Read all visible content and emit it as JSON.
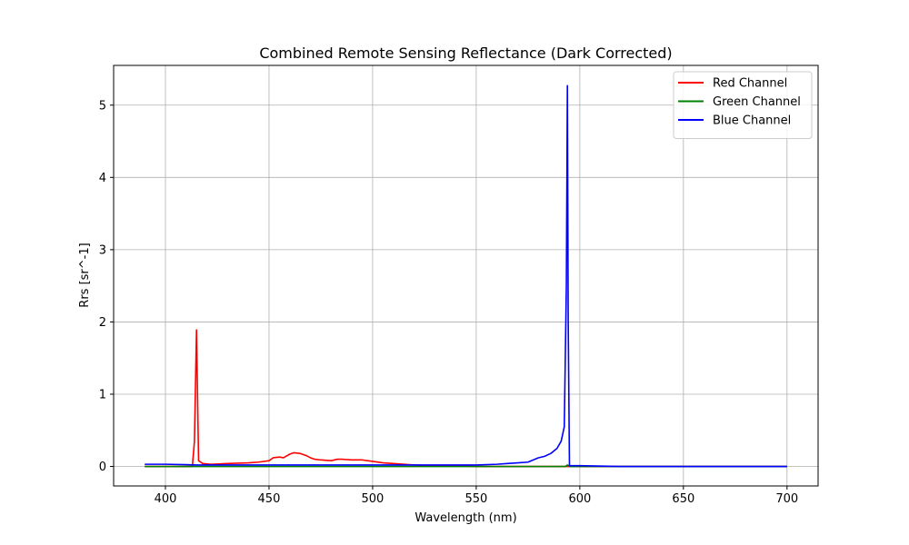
{
  "chart_data": {
    "type": "line",
    "title": "Combined Remote Sensing Reflectance (Dark Corrected)",
    "xlabel": "Wavelength (nm)",
    "ylabel": "Rrs [sr^-1]",
    "xlim": [
      375,
      715
    ],
    "ylim": [
      -0.27,
      5.55
    ],
    "xticks": [
      400,
      450,
      500,
      550,
      600,
      650,
      700
    ],
    "yticks": [
      0,
      1,
      2,
      3,
      4,
      5
    ],
    "grid": true,
    "legend_position": "top-right",
    "series": [
      {
        "name": "Red Channel",
        "color": "#ff0000",
        "x": [
          390,
          400,
          410,
          413,
          414,
          415,
          416,
          418,
          422,
          430,
          440,
          445,
          450,
          452,
          455,
          457,
          460,
          462,
          465,
          468,
          470,
          472,
          475,
          480,
          483,
          485,
          490,
          495,
          500,
          505,
          510,
          520,
          530,
          540,
          550,
          560,
          570,
          580,
          590,
          594,
          600,
          620,
          650,
          700
        ],
        "y": [
          0.0,
          0.0,
          0.0,
          0.0,
          0.35,
          1.89,
          0.08,
          0.04,
          0.03,
          0.04,
          0.05,
          0.06,
          0.08,
          0.12,
          0.13,
          0.12,
          0.17,
          0.19,
          0.18,
          0.15,
          0.12,
          0.1,
          0.09,
          0.08,
          0.1,
          0.1,
          0.09,
          0.09,
          0.07,
          0.05,
          0.04,
          0.02,
          0.01,
          0.01,
          0.0,
          0.0,
          0.0,
          0.0,
          0.0,
          0.0,
          0.0,
          0.0,
          0.0,
          0.0
        ]
      },
      {
        "name": "Green Channel",
        "color": "#008000",
        "x": [
          390,
          400,
          450,
          500,
          550,
          580,
          593,
          594,
          595,
          600,
          650,
          700
        ],
        "y": [
          0.0,
          0.0,
          0.0,
          0.0,
          0.0,
          0.0,
          0.0,
          0.02,
          0.0,
          0.0,
          0.0,
          0.0
        ]
      },
      {
        "name": "Blue Channel",
        "color": "#0000ff",
        "x": [
          390,
          400,
          410,
          415,
          420,
          450,
          500,
          540,
          550,
          560,
          565,
          570,
          575,
          580,
          583,
          586,
          589,
          591,
          592.5,
          593.5,
          594,
          594.4,
          595,
          600,
          620,
          650,
          700
        ],
        "y": [
          0.03,
          0.03,
          0.025,
          0.02,
          0.02,
          0.02,
          0.02,
          0.02,
          0.02,
          0.03,
          0.04,
          0.05,
          0.06,
          0.12,
          0.14,
          0.18,
          0.25,
          0.35,
          0.55,
          2.5,
          5.27,
          2.0,
          0.01,
          0.01,
          0.0,
          0.0,
          0.0
        ]
      }
    ]
  }
}
